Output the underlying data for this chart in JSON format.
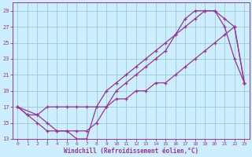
{
  "xlabel": "Windchill (Refroidissement éolien,°C)",
  "xlim": [
    -0.5,
    23.5
  ],
  "ylim": [
    13,
    30
  ],
  "xticks": [
    0,
    1,
    2,
    3,
    4,
    5,
    6,
    7,
    8,
    9,
    10,
    11,
    12,
    13,
    14,
    15,
    16,
    17,
    18,
    19,
    20,
    21,
    22,
    23
  ],
  "yticks": [
    13,
    15,
    17,
    19,
    21,
    23,
    25,
    27,
    29
  ],
  "background_color": "#cceeff",
  "line_color": "#993399",
  "grid_color": "#99cccc",
  "line1_x": [
    0,
    1,
    2,
    3,
    4,
    5,
    6,
    7,
    8,
    9,
    10,
    11,
    12,
    13,
    14,
    15,
    16,
    17,
    18,
    19,
    20,
    21,
    22,
    23
  ],
  "line1_y": [
    17,
    16,
    15,
    14,
    14,
    14,
    13,
    13,
    17,
    19,
    20,
    21,
    22,
    23,
    24,
    25,
    26,
    28,
    29,
    29,
    29,
    27,
    23,
    20
  ],
  "line2_x": [
    0,
    1,
    2,
    3,
    4,
    5,
    6,
    7,
    9,
    10,
    11,
    12,
    13,
    14,
    15,
    16,
    17,
    18,
    19,
    20,
    21,
    22,
    23
  ],
  "line2_y": [
    17,
    16,
    16,
    17,
    17,
    17,
    17,
    17,
    17,
    18,
    18,
    19,
    19,
    20,
    20,
    21,
    22,
    23,
    24,
    25,
    26,
    27,
    20
  ],
  "line3_x": [
    0,
    2,
    3,
    4,
    5,
    6,
    7,
    8,
    9,
    10,
    11,
    12,
    13,
    14,
    15,
    16,
    17,
    18,
    19,
    20,
    21,
    22,
    23
  ],
  "line3_y": [
    17,
    16,
    15,
    14,
    14,
    14,
    14,
    15,
    17,
    19,
    20,
    21,
    22,
    23,
    24,
    26,
    27,
    28,
    29,
    29,
    28,
    27,
    20
  ]
}
